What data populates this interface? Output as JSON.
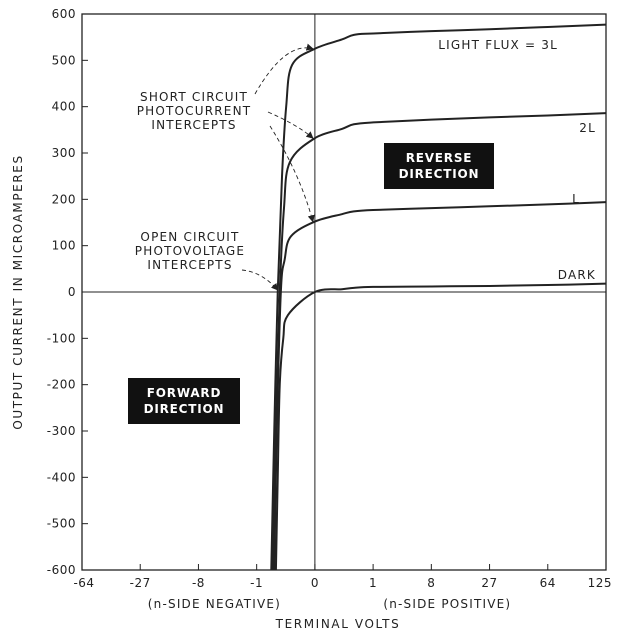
{
  "chart_data": {
    "type": "line",
    "title": "",
    "xlabel": "TERMINAL VOLTS",
    "ylabel": "OUTPUT CURRENT IN MICROAMPERES",
    "x_scale": "cube-root",
    "xlim": [
      -64,
      125
    ],
    "ylim": [
      -600,
      600
    ],
    "x_ticks": [
      {
        "value": -64,
        "label": "-64"
      },
      {
        "value": -27,
        "label": "-27"
      },
      {
        "value": -8,
        "label": "-8"
      },
      {
        "value": -1,
        "label": "-1"
      },
      {
        "value": 0,
        "label": "0"
      },
      {
        "value": 1,
        "label": "1"
      },
      {
        "value": 8,
        "label": "8"
      },
      {
        "value": 27,
        "label": "27"
      },
      {
        "value": 64,
        "label": "64"
      },
      {
        "value": 125,
        "label": "125"
      }
    ],
    "y_ticks": [
      600,
      500,
      400,
      300,
      200,
      100,
      0,
      -100,
      -200,
      -300,
      -400,
      -500,
      -600
    ],
    "y_tick_labels": [
      "600",
      "500",
      "400",
      "300",
      "200",
      "100",
      "0",
      "-100",
      "-200",
      "-300",
      "-400",
      "-500",
      "-600"
    ],
    "x_side_labels": {
      "negative": "(n-SIDE NEGATIVE)",
      "positive": "(n-SIDE POSITIVE)"
    },
    "grid": false,
    "series": [
      {
        "name": "LIGHT FLUX = 3L",
        "color": "#222222",
        "points": [
          [
            -0.42,
            -600
          ],
          [
            -0.34,
            -300
          ],
          [
            -0.26,
            0
          ],
          [
            -0.18,
            250
          ],
          [
            -0.12,
            400
          ],
          [
            -0.06,
            490
          ],
          [
            0,
            525
          ],
          [
            0.1,
            545
          ],
          [
            0.3,
            555
          ],
          [
            1,
            558
          ],
          [
            8,
            563
          ],
          [
            27,
            567
          ],
          [
            64,
            572
          ],
          [
            125,
            577
          ]
        ]
      },
      {
        "name": "2L",
        "color": "#222222",
        "points": [
          [
            -0.38,
            -600
          ],
          [
            -0.3,
            -300
          ],
          [
            -0.22,
            0
          ],
          [
            -0.15,
            180
          ],
          [
            -0.08,
            280
          ],
          [
            0,
            332
          ],
          [
            0.1,
            352
          ],
          [
            0.3,
            362
          ],
          [
            1,
            366
          ],
          [
            8,
            372
          ],
          [
            27,
            377
          ],
          [
            64,
            381
          ],
          [
            125,
            386
          ]
        ]
      },
      {
        "name": "L",
        "color": "#222222",
        "points": [
          [
            -0.34,
            -600
          ],
          [
            -0.28,
            -300
          ],
          [
            -0.2,
            0
          ],
          [
            -0.14,
            70
          ],
          [
            -0.07,
            120
          ],
          [
            0,
            152
          ],
          [
            0.1,
            168
          ],
          [
            0.3,
            174
          ],
          [
            1,
            177
          ],
          [
            8,
            181
          ],
          [
            27,
            185
          ],
          [
            64,
            189
          ],
          [
            125,
            194
          ]
        ]
      },
      {
        "name": "DARK",
        "color": "#222222",
        "points": [
          [
            -0.3,
            -600
          ],
          [
            -0.26,
            -400
          ],
          [
            -0.22,
            -200
          ],
          [
            -0.16,
            -100
          ],
          [
            -0.1,
            -50
          ],
          [
            0,
            0
          ],
          [
            0.1,
            6
          ],
          [
            0.3,
            9
          ],
          [
            1,
            11
          ],
          [
            8,
            12
          ],
          [
            27,
            13
          ],
          [
            64,
            15
          ],
          [
            125,
            18
          ]
        ]
      }
    ],
    "annotations": {
      "short_circuit": [
        "SHORT CIRCUIT",
        "PHOTOCURRENT",
        "INTERCEPTS"
      ],
      "open_circuit": [
        "OPEN CIRCUIT",
        "PHOTOVOLTAGE",
        "INTERCEPTS"
      ],
      "reverse_box": [
        "REVERSE",
        "DIRECTION"
      ],
      "forward_box": [
        "FORWARD",
        "DIRECTION"
      ],
      "short_circuit_targets": [
        525,
        332,
        152
      ],
      "open_circuit_target": [
        -0.26,
        0
      ]
    }
  }
}
